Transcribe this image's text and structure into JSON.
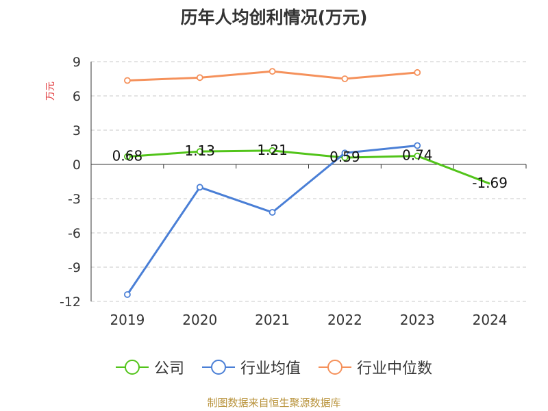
{
  "chart_data": {
    "type": "line",
    "title": "历年人均创利情况(万元)",
    "ylabel": "万元",
    "categories": [
      "2019",
      "2020",
      "2021",
      "2022",
      "2023",
      "2024"
    ],
    "ylim": [
      -12,
      9
    ],
    "yticks": [
      "9",
      "6",
      "3",
      "0",
      "-3",
      "-6",
      "-9",
      "-12"
    ],
    "ytick_values": [
      9,
      6,
      3,
      0,
      -3,
      -6,
      -9,
      -12
    ],
    "grid": true,
    "legend_position": "bottom",
    "series": [
      {
        "name": "公司",
        "color": "#52c41a",
        "values": [
          0.68,
          1.13,
          1.21,
          0.59,
          0.74,
          -1.69
        ],
        "labels": [
          "0.68",
          "1.13",
          "1.21",
          "0.59",
          "0.74",
          "-1.69"
        ]
      },
      {
        "name": "行业均值",
        "color": "#4a7fd6",
        "values": [
          -11.4,
          -2.0,
          -4.2,
          1.0,
          1.65,
          null
        ]
      },
      {
        "name": "行业中位数",
        "color": "#f5915b",
        "values": [
          7.35,
          7.6,
          8.15,
          7.5,
          8.05,
          null
        ]
      }
    ]
  },
  "source": "制图数据来自恒生聚源数据库"
}
